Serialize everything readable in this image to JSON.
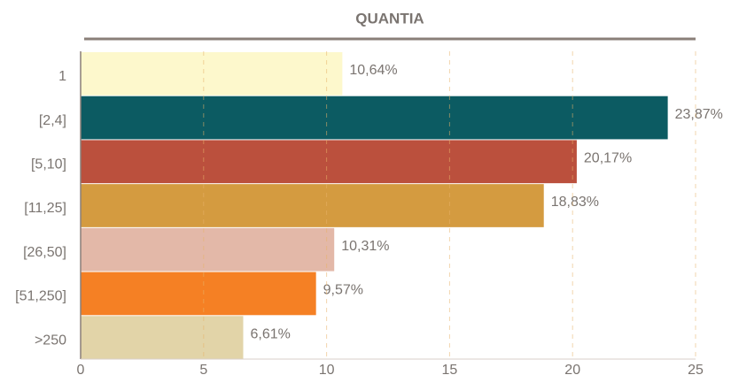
{
  "chart_data": {
    "type": "bar",
    "orientation": "horizontal",
    "title": "QUANTIA",
    "categories": [
      "1",
      "[2,4]",
      "[5,10]",
      "[11,25]",
      "[26,50]",
      "[51,250]",
      ">250"
    ],
    "values": [
      10.64,
      23.87,
      20.17,
      18.83,
      10.31,
      9.57,
      6.61
    ],
    "value_labels": [
      "10,64%",
      "23,87%",
      "20,17%",
      "18,83%",
      "10,31%",
      "9,57%",
      "6,61%"
    ],
    "colors": [
      "#fdf8cc",
      "#0c5b62",
      "#bb503d",
      "#d49b40",
      "#e3b8a8",
      "#f58024",
      "#e2d4a8"
    ],
    "xlim": [
      0,
      25
    ],
    "xticks": [
      0,
      5,
      10,
      15,
      20,
      25
    ],
    "grid": true
  }
}
